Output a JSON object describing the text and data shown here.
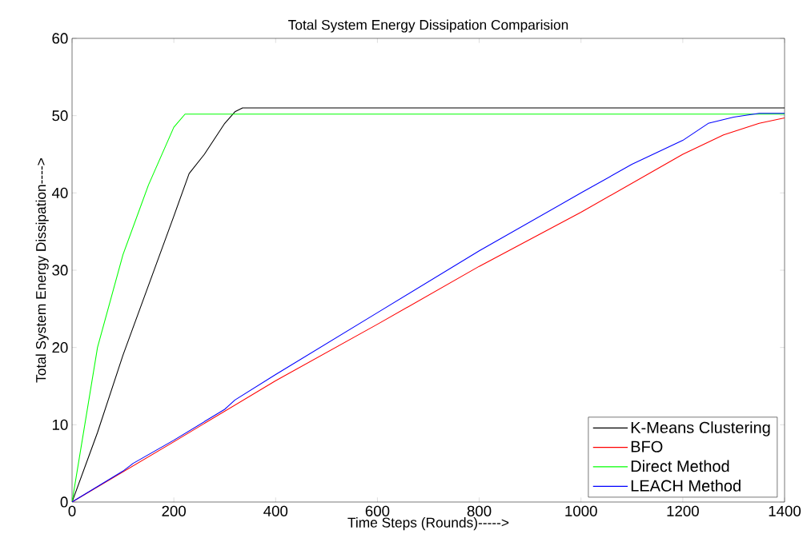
{
  "chart_data": {
    "type": "line",
    "title": "Total System Energy Dissipation Comparision",
    "xlabel": "Time  Steps (Rounds)----->",
    "ylabel": "Total System Energy Dissipation---->",
    "xlim": [
      0,
      1400
    ],
    "ylim": [
      0,
      60
    ],
    "xticks": [
      0,
      200,
      400,
      600,
      800,
      1000,
      1200,
      1400
    ],
    "yticks": [
      0,
      10,
      20,
      30,
      40,
      50,
      60
    ],
    "grid": false,
    "legend": "bottom right",
    "series": [
      {
        "name": "K-Means Clustering",
        "color": "#000000",
        "x": [
          0,
          50,
          100,
          150,
          200,
          230,
          260,
          300,
          320,
          335,
          1400
        ],
        "values": [
          0,
          9,
          19,
          28,
          37,
          42.5,
          45,
          49,
          50.5,
          51,
          51
        ]
      },
      {
        "name": "BFO",
        "color": "#ff0000",
        "x": [
          0,
          200,
          400,
          600,
          800,
          1000,
          1200,
          1280,
          1350,
          1400
        ],
        "values": [
          0,
          7.8,
          15.7,
          23,
          30.5,
          37.5,
          45,
          47.5,
          49,
          49.7
        ]
      },
      {
        "name": "Direct Method",
        "color": "#00ff00",
        "x": [
          0,
          20,
          50,
          100,
          150,
          200,
          222,
          1400
        ],
        "values": [
          0,
          8,
          20,
          32,
          41,
          48.5,
          50.2,
          50.2
        ]
      },
      {
        "name": "LEACH Method",
        "color": "#0000ff",
        "x": [
          0,
          100,
          120,
          200,
          300,
          320,
          400,
          600,
          800,
          1000,
          1100,
          1200,
          1250,
          1300,
          1350,
          1400
        ],
        "values": [
          0,
          4,
          5,
          8,
          12,
          13.2,
          16.5,
          24.5,
          32.5,
          40,
          43.7,
          46.8,
          49,
          49.8,
          50.3,
          50.3
        ]
      }
    ]
  }
}
